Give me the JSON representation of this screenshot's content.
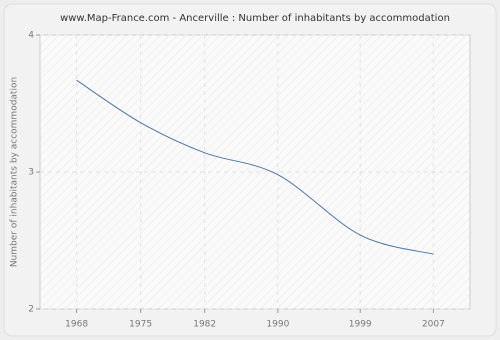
{
  "chart_data": {
    "type": "line",
    "title": "www.Map-France.com - Ancerville : Number of inhabitants by accommodation",
    "y_label": "Number of inhabitants by accommodation",
    "x": [
      1968,
      1975,
      1982,
      1990,
      1999,
      2007
    ],
    "series": [
      {
        "name": "Ancerville",
        "color": "#4a76a8",
        "values": [
          3.67,
          3.36,
          3.14,
          2.98,
          2.54,
          2.4
        ]
      }
    ],
    "xlim": [
      1964,
      2011
    ],
    "xticks": [
      1968,
      1975,
      1982,
      1990,
      1999,
      2007
    ],
    "ylim": [
      2,
      4
    ],
    "yticks": [
      2,
      3,
      4
    ],
    "grid": true
  }
}
